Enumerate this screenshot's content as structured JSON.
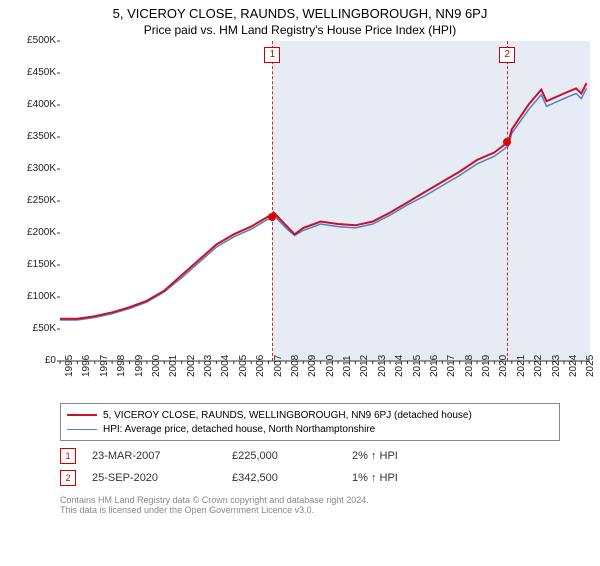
{
  "title": "5, VICEROY CLOSE, RAUNDS, WELLINGBOROUGH, NN9 6PJ",
  "subtitle": "Price paid vs. HM Land Registry's House Price Index (HPI)",
  "chart": {
    "type": "line",
    "x_start": 1995,
    "x_end": 2025.5,
    "ylim": [
      0,
      500000
    ],
    "ytick_step": 50000,
    "yticks_labels": [
      "£0",
      "£50K",
      "£100K",
      "£150K",
      "£200K",
      "£250K",
      "£300K",
      "£350K",
      "£400K",
      "£450K",
      "£500K"
    ],
    "xticks": [
      1995,
      1996,
      1997,
      1998,
      1999,
      2000,
      2001,
      2002,
      2003,
      2004,
      2005,
      2006,
      2007,
      2008,
      2009,
      2010,
      2011,
      2012,
      2013,
      2014,
      2015,
      2016,
      2017,
      2018,
      2019,
      2020,
      2021,
      2022,
      2023,
      2024,
      2025
    ],
    "plot_bg": "#ffffff",
    "shaded_color": "#e7ecf4",
    "axis_line_color": "#333333",
    "vline_color": "#d02828",
    "dot_color": "#e00000",
    "series": [
      {
        "name": "price_paid",
        "color": "#c8102e",
        "width": 2,
        "years": [
          1995,
          1996,
          1997,
          1998,
          1999,
          2000,
          2001,
          2002,
          2003,
          2004,
          2005,
          2006,
          2007,
          2007.3,
          2008,
          2008.5,
          2009,
          2010,
          2011,
          2012,
          2013,
          2014,
          2015,
          2016,
          2017,
          2018,
          2019,
          2020,
          2020.8,
          2021,
          2022,
          2022.7,
          2023,
          2024,
          2024.7,
          2025,
          2025.3
        ],
        "values": [
          66000,
          66000,
          70000,
          76000,
          84000,
          94000,
          110000,
          134000,
          158000,
          182000,
          198000,
          210000,
          226000,
          232000,
          212000,
          198000,
          208000,
          218000,
          214000,
          212000,
          218000,
          232000,
          248000,
          264000,
          280000,
          296000,
          314000,
          326000,
          342500,
          362000,
          402000,
          424000,
          406000,
          418000,
          426000,
          418000,
          434000
        ]
      },
      {
        "name": "hpi",
        "color": "#5a7fb8",
        "width": 1.5,
        "years": [
          1995,
          1996,
          1997,
          1998,
          1999,
          2000,
          2001,
          2002,
          2003,
          2004,
          2005,
          2006,
          2007,
          2007.3,
          2008,
          2008.5,
          2009,
          2010,
          2011,
          2012,
          2013,
          2014,
          2015,
          2016,
          2017,
          2018,
          2019,
          2020,
          2020.8,
          2021,
          2022,
          2022.7,
          2023,
          2024,
          2024.7,
          2025,
          2025.3
        ],
        "values": [
          64000,
          64000,
          68000,
          74000,
          82000,
          92000,
          108000,
          130000,
          154000,
          178000,
          194000,
          206000,
          222000,
          228000,
          208000,
          196000,
          204000,
          214000,
          210000,
          208000,
          214000,
          228000,
          244000,
          258000,
          274000,
          290000,
          308000,
          320000,
          336000,
          356000,
          394000,
          416000,
          398000,
          410000,
          418000,
          410000,
          426000
        ]
      }
    ],
    "markers": [
      {
        "id": "1",
        "year": 2007.22,
        "value": 225000,
        "date": "23-MAR-2007",
        "price": "£225,000",
        "pct": "2%",
        "dir": "up",
        "suffix": "HPI"
      },
      {
        "id": "2",
        "year": 2020.73,
        "value": 342500,
        "date": "25-SEP-2020",
        "price": "£342,500",
        "pct": "1%",
        "dir": "up",
        "suffix": "HPI"
      }
    ]
  },
  "legend": [
    {
      "color": "#c8102e",
      "width": 2,
      "text": "5, VICEROY CLOSE, RAUNDS, WELLINGBOROUGH, NN9 6PJ (detached house)"
    },
    {
      "color": "#5a7fb8",
      "width": 1,
      "text": "HPI: Average price, detached house, North Northamptonshire"
    }
  ],
  "footer": {
    "line1": "Contains HM Land Registry data © Crown copyright and database right 2024.",
    "line2": "This data is licensed under the Open Government Licence v3.0."
  }
}
